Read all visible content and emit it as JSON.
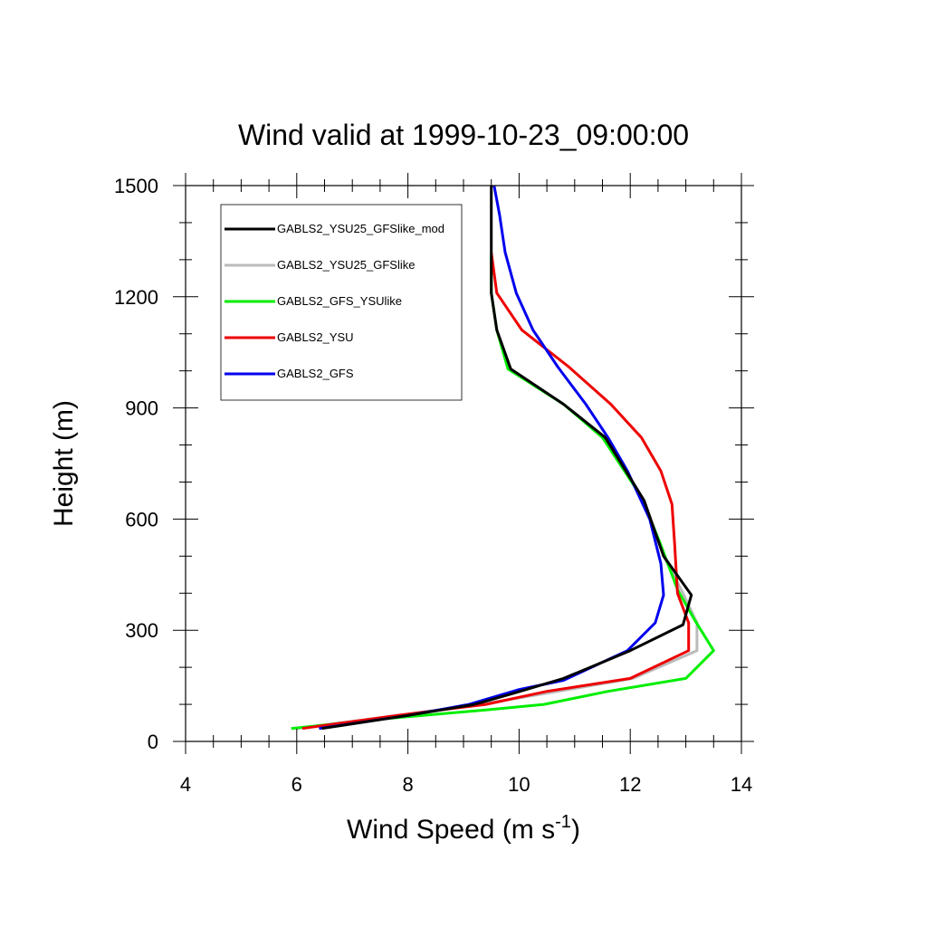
{
  "chart_data": {
    "type": "line",
    "title": "Wind valid at 1999-10-23_09:00:00",
    "xlabel": {
      "main": "Wind Speed (m s",
      "sup": "-1",
      "tail": ")"
    },
    "ylabel": "Height (m)",
    "xlim": [
      4,
      14
    ],
    "ylim": [
      0,
      1500
    ],
    "xticks": [
      4,
      6,
      8,
      10,
      12,
      14
    ],
    "yticks": [
      0,
      300,
      600,
      900,
      1200,
      1500
    ],
    "x_minor_step": 0.5,
    "y_minor_step": 100,
    "grid": false,
    "legend_position": "top-left",
    "series": [
      {
        "name": "GABLS2_YSU25_GFSlike_mod",
        "color": "#000000",
        "points": [
          [
            6.45,
            35
          ],
          [
            8.0,
            70
          ],
          [
            9.2,
            100
          ],
          [
            9.9,
            130
          ],
          [
            10.8,
            170
          ],
          [
            12.0,
            245
          ],
          [
            12.95,
            315
          ],
          [
            13.1,
            395
          ],
          [
            12.6,
            500
          ],
          [
            12.25,
            650
          ],
          [
            11.55,
            820
          ],
          [
            10.8,
            910
          ],
          [
            9.85,
            1005
          ],
          [
            9.6,
            1110
          ],
          [
            9.5,
            1210
          ],
          [
            9.5,
            1300
          ],
          [
            9.5,
            1500
          ]
        ]
      },
      {
        "name": "GABLS2_YSU25_GFSlike",
        "color": "#bbbbbb",
        "points": [
          [
            6.0,
            35
          ],
          [
            7.8,
            70
          ],
          [
            9.3,
            100
          ],
          [
            10.5,
            130
          ],
          [
            12.05,
            170
          ],
          [
            13.2,
            245
          ],
          [
            13.2,
            320
          ],
          [
            12.95,
            400
          ],
          [
            12.6,
            500
          ],
          [
            12.25,
            650
          ],
          [
            11.55,
            820
          ],
          [
            10.8,
            910
          ],
          [
            9.85,
            1005
          ],
          [
            9.6,
            1110
          ],
          [
            9.5,
            1210
          ],
          [
            9.5,
            1300
          ]
        ]
      },
      {
        "name": "GABLS2_GFS_YSUlike",
        "color": "#00ee00",
        "points": [
          [
            5.9,
            35
          ],
          [
            7.5,
            60
          ],
          [
            9.4,
            85
          ],
          [
            10.45,
            100
          ],
          [
            11.6,
            135
          ],
          [
            13.0,
            170
          ],
          [
            13.5,
            245
          ],
          [
            13.15,
            330
          ],
          [
            12.85,
            410
          ],
          [
            12.55,
            530
          ],
          [
            12.2,
            660
          ],
          [
            11.5,
            820
          ],
          [
            10.8,
            910
          ],
          [
            9.8,
            1005
          ],
          [
            9.6,
            1110
          ],
          [
            9.5,
            1210
          ],
          [
            9.5,
            1310
          ]
        ]
      },
      {
        "name": "GABLS2_YSU",
        "color": "#ee0000",
        "points": [
          [
            6.1,
            35
          ],
          [
            7.8,
            70
          ],
          [
            9.4,
            100
          ],
          [
            10.5,
            135
          ],
          [
            12.0,
            170
          ],
          [
            13.05,
            245
          ],
          [
            13.05,
            320
          ],
          [
            12.85,
            400
          ],
          [
            12.8,
            530
          ],
          [
            12.75,
            640
          ],
          [
            12.55,
            730
          ],
          [
            12.2,
            820
          ],
          [
            11.65,
            910
          ],
          [
            10.9,
            1010
          ],
          [
            10.05,
            1110
          ],
          [
            9.6,
            1210
          ],
          [
            9.5,
            1320
          ]
        ]
      },
      {
        "name": "GABLS2_GFS",
        "color": "#0000ee",
        "points": [
          [
            6.4,
            35
          ],
          [
            8.0,
            70
          ],
          [
            9.1,
            100
          ],
          [
            10.0,
            140
          ],
          [
            10.8,
            165
          ],
          [
            11.95,
            245
          ],
          [
            12.45,
            320
          ],
          [
            12.6,
            395
          ],
          [
            12.55,
            480
          ],
          [
            12.35,
            600
          ],
          [
            11.95,
            730
          ],
          [
            11.6,
            820
          ],
          [
            11.2,
            910
          ],
          [
            10.7,
            1010
          ],
          [
            10.25,
            1110
          ],
          [
            9.95,
            1210
          ],
          [
            9.75,
            1320
          ],
          [
            9.65,
            1420
          ],
          [
            9.55,
            1500
          ]
        ]
      }
    ]
  }
}
